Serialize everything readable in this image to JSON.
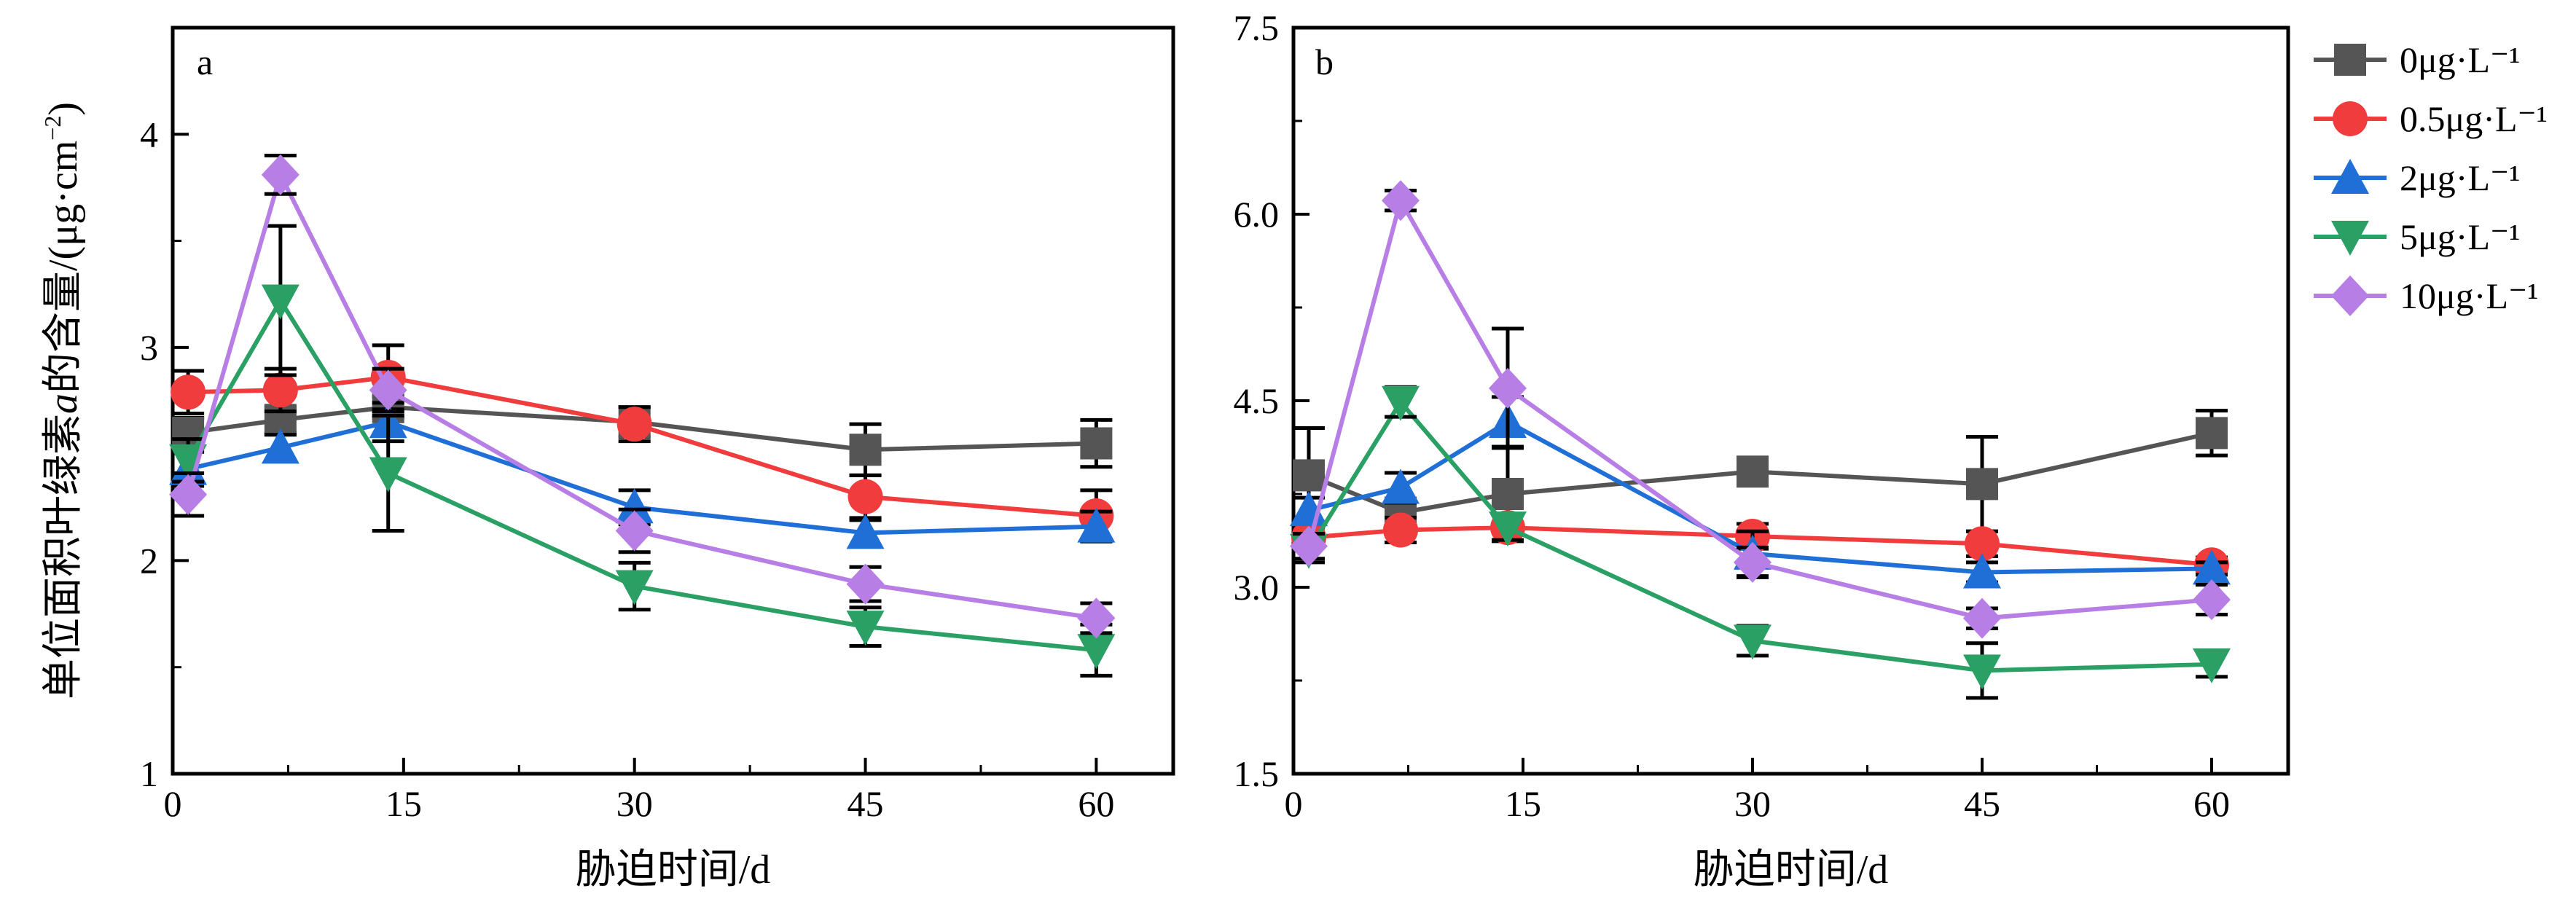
{
  "chart_data": [
    {
      "type": "line",
      "panel_label": "a",
      "xlabel": "胁迫时间/d",
      "ylabel": "单位面积叶绿素a的含量/(μg·cm⁻²)",
      "ylabel_parts": {
        "pre": "单位面积叶绿素",
        "italic": "a",
        "mid": "的含量/(μg·cm",
        "sup": "−2",
        "post": ")"
      },
      "xlim": [
        0,
        65
      ],
      "ylim": [
        1,
        4.5
      ],
      "x_ticks": [
        "0",
        "15",
        "30",
        "45",
        "60"
      ],
      "y_ticks": [
        "1",
        "2",
        "3",
        "4"
      ],
      "x": [
        1,
        7,
        14,
        30,
        45,
        60
      ],
      "series": [
        {
          "name": "0μg·L⁻¹",
          "color": "#555555",
          "marker": "square",
          "values": [
            2.6,
            2.66,
            2.72,
            2.65,
            2.52,
            2.55
          ],
          "errors": [
            0.07,
            0.06,
            0.05,
            0.07,
            0.12,
            0.11
          ]
        },
        {
          "name": "0.5μg·L⁻¹",
          "color": "#f03c3c",
          "marker": "circle",
          "values": [
            2.79,
            2.8,
            2.86,
            2.64,
            2.3,
            2.21
          ],
          "errors": [
            0.1,
            0.1,
            0.15,
            0.08,
            0.1,
            0.12
          ]
        },
        {
          "name": "2μg·L⁻¹",
          "color": "#1f6fd6",
          "marker": "triangle-up",
          "values": [
            2.43,
            2.53,
            2.65,
            2.25,
            2.13,
            2.16
          ],
          "errors": [
            0.08,
            0.06,
            0.09,
            0.08,
            0.06,
            0.07
          ]
        },
        {
          "name": "5μg·L⁻¹",
          "color": "#2aa065",
          "marker": "triangle-down",
          "values": [
            2.47,
            3.22,
            2.41,
            1.88,
            1.69,
            1.58
          ],
          "errors": [
            0.1,
            0.35,
            0.27,
            0.11,
            0.09,
            0.12
          ]
        },
        {
          "name": "10μg·L⁻¹",
          "color": "#b77ee6",
          "marker": "diamond",
          "values": [
            2.31,
            3.81,
            2.8,
            2.14,
            1.89,
            1.73
          ],
          "errors": [
            0.1,
            0.09,
            0.1,
            0.1,
            0.08,
            0.07
          ]
        }
      ]
    },
    {
      "type": "line",
      "panel_label": "b",
      "xlabel": "胁迫时间/d",
      "xlim": [
        0,
        65
      ],
      "ylim": [
        1.5,
        7.5
      ],
      "x_ticks": [
        "0",
        "15",
        "30",
        "45",
        "60"
      ],
      "y_ticks": [
        "1.5",
        "3.0",
        "4.5",
        "6.0",
        "7.5"
      ],
      "x": [
        1,
        7,
        14,
        30,
        45,
        60
      ],
      "series": [
        {
          "name": "0μg·L⁻¹",
          "color": "#555555",
          "marker": "square",
          "values": [
            3.9,
            3.6,
            3.75,
            3.93,
            3.83,
            4.24
          ],
          "errors": [
            0.38,
            0.1,
            0.38,
            0.1,
            0.38,
            0.18
          ]
        },
        {
          "name": "0.5μg·L⁻¹",
          "color": "#f03c3c",
          "marker": "circle",
          "values": [
            3.4,
            3.46,
            3.48,
            3.41,
            3.35,
            3.18
          ],
          "errors": [
            0.08,
            0.1,
            0.1,
            0.1,
            0.1,
            0.06
          ]
        },
        {
          "name": "2μg·L⁻¹",
          "color": "#1f6fd6",
          "marker": "triangle-up",
          "values": [
            3.62,
            3.8,
            4.33,
            3.27,
            3.12,
            3.15
          ],
          "errors": [
            0.1,
            0.12,
            0.2,
            0.18,
            0.08,
            0.05
          ]
        },
        {
          "name": "5μg·L⁻¹",
          "color": "#2aa065",
          "marker": "triangle-down",
          "values": [
            3.3,
            4.49,
            3.48,
            2.57,
            2.33,
            2.38
          ],
          "errors": [
            0.1,
            0.12,
            0.1,
            0.12,
            0.22,
            0.1
          ]
        },
        {
          "name": "10μg·L⁻¹",
          "color": "#b77ee6",
          "marker": "diamond",
          "values": [
            3.33,
            6.11,
            4.6,
            3.2,
            2.75,
            2.9
          ],
          "errors": [
            0.1,
            0.08,
            0.48,
            0.12,
            0.08,
            0.12
          ]
        }
      ]
    }
  ]
}
